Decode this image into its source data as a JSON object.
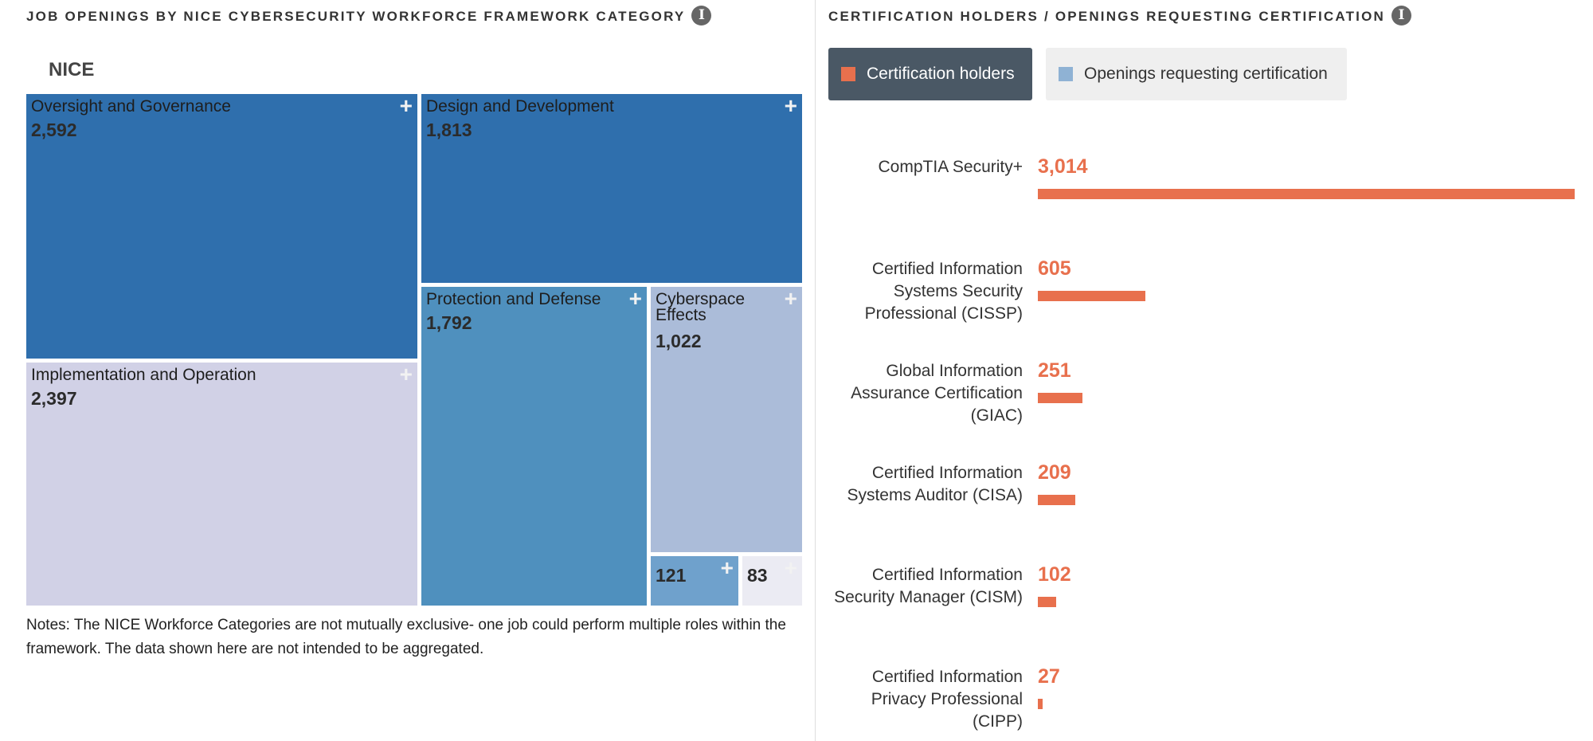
{
  "left_panel": {
    "title": "JOB OPENINGS BY NICE CYBERSECURITY WORKFORCE FRAMEWORK CATEGORY",
    "info_icon": "info-icon"
  },
  "right_panel": {
    "title": "CERTIFICATION HOLDERS / OPENINGS REQUESTING CERTIFICATION",
    "info_icon": "info-icon"
  },
  "legend": {
    "holders": {
      "label": "Certification holders",
      "color": "#e8704d",
      "active": true
    },
    "openings": {
      "label": "Openings requesting certification",
      "color": "#8fb2d4",
      "active": false
    }
  },
  "chart_data": [
    {
      "type": "treemap",
      "root_label": "NICE",
      "nodes": [
        {
          "name": "Oversight and Governance",
          "value": 2592,
          "display": "2,592",
          "color": "#2f6fad"
        },
        {
          "name": "Design and Development",
          "value": 1813,
          "display": "1,813",
          "color": "#2f6fad"
        },
        {
          "name": "Implementation and Operation",
          "value": 2397,
          "display": "2,397",
          "color": "#d1d1e6"
        },
        {
          "name": "Protection and Defense",
          "value": 1792,
          "display": "1,792",
          "color": "#4f90be"
        },
        {
          "name": "Cyberspace Effects",
          "value": 1022,
          "display": "1,022",
          "color": "#abbcd9"
        },
        {
          "name": "",
          "value": 121,
          "display": "121",
          "color": "#6fa1cc"
        },
        {
          "name": "",
          "value": 83,
          "display": "83",
          "color": "#ebebf3"
        }
      ],
      "notes": "Notes: The NICE Workforce Categories are not mutually exclusive- one job could perform multiple roles within the framework. The data shown here are not intended to be aggregated."
    },
    {
      "type": "bar",
      "orientation": "horizontal",
      "series_shown": "Certification holders",
      "categories": [
        "CompTIA Security+",
        "Certified Information Systems Security Professional (CISSP)",
        "Global Information Assurance Certification (GIAC)",
        "Certified Information Systems Auditor (CISA)",
        "Certified Information Security Manager (CISM)",
        "Certified Information Privacy Professional (CIPP)"
      ],
      "values": [
        3014,
        605,
        251,
        209,
        102,
        27
      ],
      "value_labels": [
        "3,014",
        "605",
        "251",
        "209",
        "102",
        "27"
      ],
      "color": "#e8704d"
    }
  ]
}
